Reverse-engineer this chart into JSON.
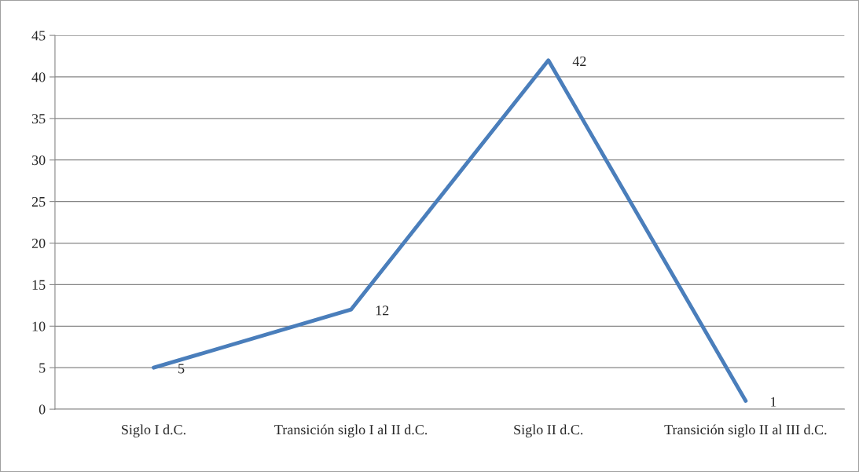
{
  "chart_data": {
    "type": "line",
    "categories": [
      "Siglo I d.C.",
      "Transición siglo I al II d.C.",
      "Siglo II d.C.",
      "Transición siglo II al III d.C."
    ],
    "series": [
      {
        "color": "#4a7ebb",
        "values": [
          5,
          12,
          42,
          1
        ]
      }
    ],
    "ylim": [
      0,
      45
    ],
    "yticks": [
      0,
      5,
      10,
      15,
      20,
      25,
      30,
      35,
      40,
      45
    ],
    "grid": "y",
    "data_labels": true,
    "marker": "none",
    "line_style": "solid"
  }
}
